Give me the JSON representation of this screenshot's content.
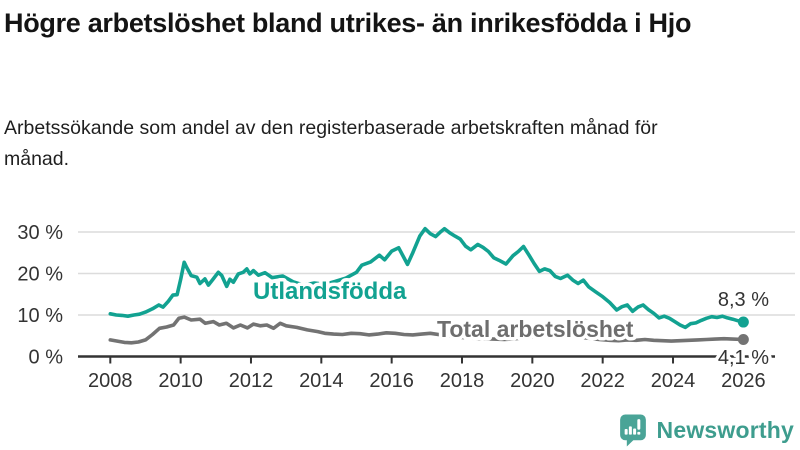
{
  "header": {
    "title": "Högre arbetslöshet bland utrikes- än inrikesfödda i Hjo",
    "subtitle": "Arbetssökande som andel av den registerbaserade arbetskraften månad för månad."
  },
  "footer": {
    "brand": "Newsworthy",
    "brand_color": "#3e9d8e",
    "icon_color": "#4aa497"
  },
  "colors": {
    "series_foreign": "#12a291",
    "series_total": "#737373",
    "gridline": "#dcdcdc",
    "axis": "#333333",
    "text": "#333333"
  },
  "chart_data": {
    "type": "line",
    "title": "",
    "xlabel": "",
    "ylabel": "",
    "grid": "horizontal",
    "x_axis": {
      "tick_years": [
        2008,
        2010,
        2012,
        2014,
        2016,
        2018,
        2020,
        2022,
        2024,
        2026
      ],
      "range": [
        2007.1,
        2026.6
      ]
    },
    "y_axis": {
      "ticks": [
        {
          "v": 0,
          "label": "0 %"
        },
        {
          "v": 10,
          "label": "10 %"
        },
        {
          "v": 20,
          "label": "20 %"
        },
        {
          "v": 30,
          "label": "30 %"
        }
      ],
      "range": [
        0,
        33
      ]
    },
    "series": [
      {
        "name": "Utlandsfödda",
        "color": "#12a291",
        "end_label": "8,3 %",
        "latest_value": 8.3,
        "points": [
          [
            2008.0,
            10.3
          ],
          [
            2008.17,
            10.0
          ],
          [
            2008.33,
            9.9
          ],
          [
            2008.5,
            9.7
          ],
          [
            2008.67,
            10.0
          ],
          [
            2008.83,
            10.2
          ],
          [
            2009.0,
            10.7
          ],
          [
            2009.2,
            11.5
          ],
          [
            2009.38,
            12.4
          ],
          [
            2009.5,
            11.9
          ],
          [
            2009.65,
            13.3
          ],
          [
            2009.78,
            14.8
          ],
          [
            2009.9,
            14.9
          ],
          [
            2010.0,
            18.5
          ],
          [
            2010.1,
            22.7
          ],
          [
            2010.17,
            21.5
          ],
          [
            2010.3,
            19.5
          ],
          [
            2010.46,
            19.1
          ],
          [
            2010.55,
            17.6
          ],
          [
            2010.69,
            18.7
          ],
          [
            2010.79,
            17.2
          ],
          [
            2010.93,
            18.7
          ],
          [
            2011.07,
            20.3
          ],
          [
            2011.17,
            19.5
          ],
          [
            2011.31,
            16.9
          ],
          [
            2011.4,
            18.6
          ],
          [
            2011.5,
            17.9
          ],
          [
            2011.64,
            19.9
          ],
          [
            2011.78,
            20.3
          ],
          [
            2011.88,
            21.1
          ],
          [
            2011.97,
            19.9
          ],
          [
            2012.07,
            20.7
          ],
          [
            2012.21,
            19.6
          ],
          [
            2012.4,
            20.2
          ],
          [
            2012.6,
            19.0
          ],
          [
            2012.9,
            19.4
          ],
          [
            2013.2,
            18.0
          ],
          [
            2013.5,
            17.2
          ],
          [
            2013.8,
            17.7
          ],
          [
            2014.1,
            17.4
          ],
          [
            2014.4,
            18.1
          ],
          [
            2014.7,
            18.9
          ],
          [
            2015.0,
            20.3
          ],
          [
            2015.15,
            22.0
          ],
          [
            2015.4,
            22.8
          ],
          [
            2015.65,
            24.4
          ],
          [
            2015.8,
            23.3
          ],
          [
            2016.0,
            25.4
          ],
          [
            2016.2,
            26.2
          ],
          [
            2016.45,
            22.2
          ],
          [
            2016.6,
            25.0
          ],
          [
            2016.8,
            29.0
          ],
          [
            2016.95,
            30.8
          ],
          [
            2017.1,
            29.6
          ],
          [
            2017.25,
            28.9
          ],
          [
            2017.4,
            30.1
          ],
          [
            2017.5,
            30.8
          ],
          [
            2017.65,
            29.8
          ],
          [
            2017.8,
            29.0
          ],
          [
            2017.95,
            28.3
          ],
          [
            2018.1,
            26.6
          ],
          [
            2018.25,
            25.7
          ],
          [
            2018.45,
            27.0
          ],
          [
            2018.6,
            26.3
          ],
          [
            2018.75,
            25.3
          ],
          [
            2018.9,
            23.8
          ],
          [
            2019.05,
            23.2
          ],
          [
            2019.25,
            22.3
          ],
          [
            2019.45,
            24.3
          ],
          [
            2019.6,
            25.3
          ],
          [
            2019.75,
            26.5
          ],
          [
            2019.9,
            24.5
          ],
          [
            2020.05,
            22.4
          ],
          [
            2020.2,
            20.5
          ],
          [
            2020.35,
            21.1
          ],
          [
            2020.5,
            20.7
          ],
          [
            2020.65,
            19.3
          ],
          [
            2020.8,
            18.8
          ],
          [
            2021.0,
            19.6
          ],
          [
            2021.15,
            18.4
          ],
          [
            2021.3,
            17.6
          ],
          [
            2021.45,
            18.4
          ],
          [
            2021.6,
            16.8
          ],
          [
            2021.8,
            15.6
          ],
          [
            2022.0,
            14.4
          ],
          [
            2022.2,
            13.0
          ],
          [
            2022.4,
            11.2
          ],
          [
            2022.55,
            12.0
          ],
          [
            2022.7,
            12.4
          ],
          [
            2022.85,
            10.9
          ],
          [
            2023.0,
            11.9
          ],
          [
            2023.15,
            12.4
          ],
          [
            2023.3,
            11.3
          ],
          [
            2023.45,
            10.4
          ],
          [
            2023.6,
            9.3
          ],
          [
            2023.75,
            9.7
          ],
          [
            2023.9,
            9.2
          ],
          [
            2024.05,
            8.4
          ],
          [
            2024.2,
            7.6
          ],
          [
            2024.35,
            7.0
          ],
          [
            2024.5,
            7.9
          ],
          [
            2024.65,
            8.1
          ],
          [
            2024.8,
            8.7
          ],
          [
            2024.95,
            9.2
          ],
          [
            2025.1,
            9.6
          ],
          [
            2025.25,
            9.4
          ],
          [
            2025.4,
            9.7
          ],
          [
            2025.55,
            9.3
          ],
          [
            2025.7,
            9.0
          ],
          [
            2025.85,
            8.6
          ],
          [
            2026.0,
            8.3
          ]
        ]
      },
      {
        "name": "Total arbetslöshet",
        "color": "#737373",
        "end_label": "4,1 %",
        "latest_value": 4.1,
        "points": [
          [
            2008.0,
            4.0
          ],
          [
            2008.2,
            3.7
          ],
          [
            2008.4,
            3.4
          ],
          [
            2008.6,
            3.3
          ],
          [
            2008.8,
            3.5
          ],
          [
            2009.0,
            4.0
          ],
          [
            2009.2,
            5.3
          ],
          [
            2009.4,
            6.8
          ],
          [
            2009.6,
            7.1
          ],
          [
            2009.8,
            7.6
          ],
          [
            2009.95,
            9.2
          ],
          [
            2010.1,
            9.5
          ],
          [
            2010.3,
            8.8
          ],
          [
            2010.55,
            9.0
          ],
          [
            2010.7,
            8.0
          ],
          [
            2010.93,
            8.4
          ],
          [
            2011.1,
            7.6
          ],
          [
            2011.3,
            8.0
          ],
          [
            2011.5,
            6.9
          ],
          [
            2011.7,
            7.6
          ],
          [
            2011.9,
            6.9
          ],
          [
            2012.07,
            7.8
          ],
          [
            2012.26,
            7.4
          ],
          [
            2012.45,
            7.6
          ],
          [
            2012.64,
            6.8
          ],
          [
            2012.83,
            8.0
          ],
          [
            2013.0,
            7.4
          ],
          [
            2013.3,
            7.0
          ],
          [
            2013.6,
            6.4
          ],
          [
            2013.9,
            6.0
          ],
          [
            2014.1,
            5.6
          ],
          [
            2014.35,
            5.4
          ],
          [
            2014.6,
            5.3
          ],
          [
            2014.85,
            5.6
          ],
          [
            2015.1,
            5.5
          ],
          [
            2015.35,
            5.2
          ],
          [
            2015.6,
            5.4
          ],
          [
            2015.85,
            5.7
          ],
          [
            2016.1,
            5.6
          ],
          [
            2016.35,
            5.3
          ],
          [
            2016.6,
            5.2
          ],
          [
            2016.85,
            5.4
          ],
          [
            2017.1,
            5.6
          ],
          [
            2017.4,
            5.2
          ],
          [
            2017.7,
            4.9
          ],
          [
            2018.0,
            4.6
          ],
          [
            2018.3,
            4.4
          ],
          [
            2018.6,
            4.3
          ],
          [
            2018.9,
            4.2
          ],
          [
            2019.2,
            4.1
          ],
          [
            2019.5,
            4.3
          ],
          [
            2019.8,
            4.5
          ],
          [
            2020.1,
            5.0
          ],
          [
            2020.4,
            5.6
          ],
          [
            2020.7,
            5.3
          ],
          [
            2021.0,
            5.0
          ],
          [
            2021.3,
            4.7
          ],
          [
            2021.6,
            4.4
          ],
          [
            2021.9,
            4.1
          ],
          [
            2022.2,
            3.9
          ],
          [
            2022.45,
            3.8
          ],
          [
            2022.7,
            4.0
          ],
          [
            2022.95,
            3.9
          ],
          [
            2023.2,
            4.1
          ],
          [
            2023.45,
            3.9
          ],
          [
            2023.7,
            3.8
          ],
          [
            2023.95,
            3.7
          ],
          [
            2024.2,
            3.8
          ],
          [
            2024.45,
            3.9
          ],
          [
            2024.7,
            4.0
          ],
          [
            2024.95,
            4.1
          ],
          [
            2025.2,
            4.2
          ],
          [
            2025.45,
            4.3
          ],
          [
            2025.7,
            4.2
          ],
          [
            2026.0,
            4.1
          ]
        ]
      }
    ]
  }
}
